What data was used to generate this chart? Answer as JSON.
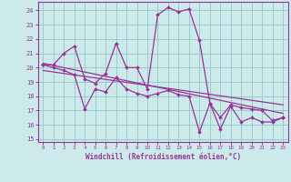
{
  "xlabel": "Windchill (Refroidissement éolien,°C)",
  "background_color": "#cceaea",
  "line_color": "#993399",
  "grid_color": "#99cccc",
  "xlim": [
    -0.5,
    23.5
  ],
  "ylim": [
    14.8,
    24.6
  ],
  "yticks": [
    15,
    16,
    17,
    18,
    19,
    20,
    21,
    22,
    23,
    24
  ],
  "xticks": [
    0,
    1,
    2,
    3,
    4,
    5,
    6,
    7,
    8,
    9,
    10,
    11,
    12,
    13,
    14,
    15,
    16,
    17,
    18,
    19,
    20,
    21,
    22,
    23
  ],
  "curve1_x": [
    0,
    1,
    2,
    3,
    4,
    5,
    6,
    7,
    8,
    9,
    10,
    11,
    12,
    13,
    14,
    15,
    16,
    17,
    18,
    19,
    20,
    21,
    22,
    23
  ],
  "curve1_y": [
    20.2,
    20.2,
    21.0,
    21.5,
    19.2,
    18.9,
    19.6,
    21.7,
    20.0,
    20.0,
    18.5,
    23.7,
    24.2,
    23.9,
    24.1,
    21.9,
    17.5,
    16.5,
    17.4,
    17.2,
    17.1,
    17.0,
    16.3,
    16.5
  ],
  "curve2_x": [
    0,
    1,
    2,
    3,
    4,
    5,
    6,
    7,
    8,
    9,
    10,
    11,
    12,
    13,
    14,
    15,
    16,
    17,
    18,
    19,
    20,
    21,
    22,
    23
  ],
  "curve2_y": [
    20.2,
    20.0,
    19.8,
    19.5,
    17.1,
    18.5,
    18.3,
    19.3,
    18.5,
    18.2,
    18.0,
    18.2,
    18.4,
    18.1,
    18.0,
    15.5,
    17.5,
    15.7,
    17.3,
    16.2,
    16.5,
    16.2,
    16.2,
    16.5
  ],
  "trend1_x": [
    0,
    23
  ],
  "trend1_y": [
    20.3,
    16.8
  ],
  "trend2_x": [
    0,
    23
  ],
  "trend2_y": [
    19.8,
    17.4
  ]
}
